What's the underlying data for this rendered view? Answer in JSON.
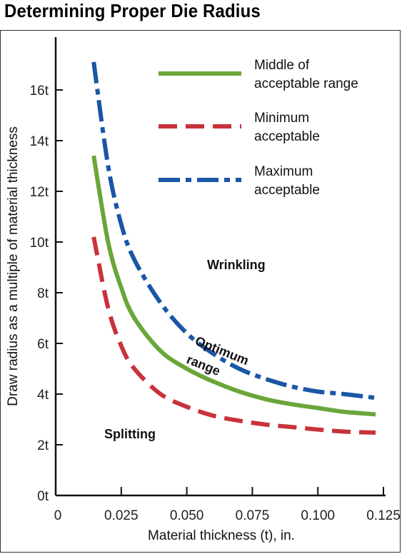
{
  "title": "Determining Proper Die Radius",
  "colors": {
    "middle": "#6aa63a",
    "minimum": "#c8323a",
    "maximum": "#1a56a6",
    "axis": "#111111"
  },
  "chart_data": {
    "type": "line",
    "xlabel": "Material thickness (t), in.",
    "ylabel": "Draw radius as a multiple of material thickness",
    "xlim": [
      0,
      0.125
    ],
    "ylim": [
      0,
      17
    ],
    "x_ticks": [
      0,
      0.025,
      0.05,
      0.075,
      0.1,
      0.125
    ],
    "x_tick_labels": [
      "0",
      "0.025",
      "0.050",
      "0.075",
      "0.100",
      "0.125"
    ],
    "y_ticks": [
      0,
      2,
      4,
      6,
      8,
      10,
      12,
      14,
      16
    ],
    "y_tick_labels": [
      "0t",
      "2t",
      "4t",
      "6t",
      "8t",
      "10t",
      "12t",
      "14t",
      "16t"
    ],
    "grid": false,
    "legend_position": "top-right",
    "series": [
      {
        "name": "Middle of acceptable range",
        "style": "solid",
        "color": "#6aa63a",
        "x": [
          0.0145,
          0.02,
          0.025,
          0.03,
          0.04,
          0.05,
          0.06,
          0.07,
          0.08,
          0.09,
          0.1,
          0.11,
          0.122
        ],
        "y": [
          13.4,
          10.0,
          8.2,
          7.0,
          5.7,
          5.0,
          4.5,
          4.1,
          3.8,
          3.6,
          3.45,
          3.3,
          3.2
        ]
      },
      {
        "name": "Minimum acceptable",
        "style": "dashed",
        "color": "#c8323a",
        "x": [
          0.0145,
          0.02,
          0.025,
          0.03,
          0.04,
          0.05,
          0.06,
          0.07,
          0.08,
          0.09,
          0.1,
          0.11,
          0.122
        ],
        "y": [
          10.2,
          7.4,
          5.9,
          5.0,
          4.0,
          3.5,
          3.15,
          2.95,
          2.8,
          2.7,
          2.6,
          2.52,
          2.48
        ]
      },
      {
        "name": "Maximum acceptable",
        "style": "dash-dot",
        "color": "#1a56a6",
        "x": [
          0.0145,
          0.02,
          0.025,
          0.03,
          0.04,
          0.05,
          0.06,
          0.07,
          0.08,
          0.09,
          0.1,
          0.11,
          0.122
        ],
        "y": [
          17.1,
          13.0,
          10.7,
          9.3,
          7.6,
          6.4,
          5.6,
          5.0,
          4.6,
          4.3,
          4.1,
          4.0,
          3.85
        ]
      }
    ],
    "legend": [
      {
        "line1": "Middle of",
        "line2": "acceptable range",
        "style": "solid",
        "color": "#6aa63a"
      },
      {
        "line1": "Minimum",
        "line2": "acceptable",
        "style": "dashed",
        "color": "#c8323a"
      },
      {
        "line1": "Maximum",
        "line2": "acceptable",
        "style": "dash-dot",
        "color": "#1a56a6"
      }
    ],
    "annotations": {
      "wrinkling": "Wrinkling",
      "optimum": "Optimum",
      "range": "range",
      "splitting": "Splitting"
    }
  }
}
